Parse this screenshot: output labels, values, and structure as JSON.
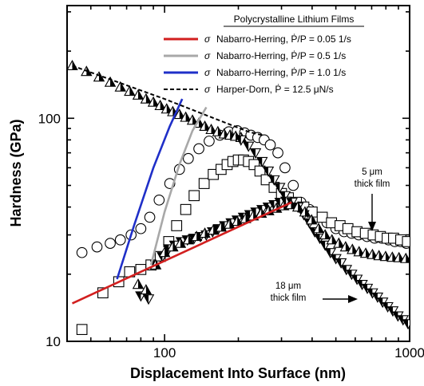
{
  "chart_data": {
    "type": "scatter",
    "title": "",
    "xlabel": "Displacement Into Surface (nm)",
    "ylabel": "Hardness (GPa)",
    "xscale": "log",
    "yscale": "log",
    "xlim": [
      40,
      1000
    ],
    "ylim": [
      10,
      320
    ],
    "x_tick_labels": [
      {
        "value": 100,
        "label": "100"
      },
      {
        "value": 1000,
        "label": "1000"
      }
    ],
    "y_tick_labels": [
      {
        "value": 10,
        "label": "10"
      },
      {
        "value": 100,
        "label": "100"
      }
    ],
    "legend": {
      "title": "Polycrystalline Lithium Films",
      "placement": "top-right",
      "entries": [
        {
          "symbol": "σ",
          "text": "Nabarro-Herring, Ṗ/P = 0.05 1/s",
          "color": "#d21f1f",
          "dash": false
        },
        {
          "symbol": "σ",
          "text": "Nabarro-Herring, Ṗ/P = 0.5 1/s",
          "color": "#a8a8a8",
          "dash": false
        },
        {
          "symbol": "σ",
          "text": "Nabarro-Herring, Ṗ/P = 1.0 1/s",
          "color": "#1f2fc8",
          "dash": false
        },
        {
          "symbol": "σ",
          "text": "Harper-Dorn, Ṗ = 12.5 μN/s",
          "color": "#000000",
          "dash": true
        }
      ]
    },
    "lines": [
      {
        "label": "Nabarro-Herring 0.05 1/s",
        "color": "#d21f1f",
        "dash": false,
        "x": [
          42,
          330
        ],
        "y": [
          14.8,
          42
        ]
      },
      {
        "label": "Nabarro-Herring 0.5 1/s",
        "color": "#a8a8a8",
        "dash": false,
        "x": [
          88,
          100,
          115,
          130,
          148
        ],
        "y": [
          22,
          38,
          62,
          88,
          112
        ]
      },
      {
        "label": "Nabarro-Herring 1.0 1/s",
        "color": "#1f2fc8",
        "dash": false,
        "x": [
          64,
          75,
          90,
          105,
          118
        ],
        "y": [
          19,
          33,
          60,
          92,
          122
        ]
      },
      {
        "label": "Harper-Dorn 12.5 μN/s",
        "color": "#000000",
        "dash": true,
        "x": [
          42,
          100,
          220,
          250
        ],
        "y": [
          172,
          122,
          87,
          84
        ]
      }
    ],
    "series": [
      {
        "marker": "circle-open",
        "x": [
          46,
          53,
          60,
          66,
          73,
          80,
          87,
          95,
          105,
          115,
          125,
          138,
          152,
          168,
          183,
          198,
          212,
          225,
          240,
          255,
          270,
          290,
          310,
          335,
          360,
          390,
          420,
          460,
          500,
          540,
          580,
          620,
          670,
          720,
          770,
          820,
          870,
          920,
          970
        ],
        "y": [
          25,
          26.5,
          27.5,
          28.5,
          30,
          32,
          36,
          43,
          51,
          59,
          66,
          73,
          79,
          84,
          87,
          88,
          86,
          84,
          82,
          80,
          76,
          70,
          60,
          50,
          42,
          39,
          36,
          34,
          32,
          31,
          30.5,
          30,
          29.5,
          29,
          29,
          28.5,
          28,
          28,
          27.5
        ]
      },
      {
        "marker": "square-open",
        "x": [
          46,
          56,
          65,
          72,
          80,
          88,
          96,
          104,
          112,
          122,
          132,
          145,
          158,
          170,
          180,
          190,
          200,
          210,
          220,
          232,
          245,
          260,
          280,
          300,
          320,
          345,
          370,
          400,
          440,
          480,
          520,
          560,
          610,
          660,
          710,
          760,
          810,
          860,
          920,
          980
        ],
        "y": [
          11.3,
          16.5,
          18.5,
          20.5,
          21,
          22,
          24,
          28,
          33,
          39,
          45,
          51,
          56,
          59,
          62,
          64,
          65,
          65,
          64,
          62,
          58,
          53,
          49,
          46,
          44,
          42,
          40,
          38,
          36,
          34,
          33,
          32,
          31,
          30.5,
          30,
          29.5,
          29,
          29,
          28.5,
          28
        ]
      },
      {
        "marker": "triangle-up-half",
        "x": [
          42,
          48,
          54,
          60,
          66,
          72,
          78,
          84,
          90,
          96,
          102,
          108,
          115,
          122,
          130,
          138,
          146,
          155,
          165,
          175,
          185,
          195,
          205
        ],
        "y": [
          172,
          162,
          153,
          145,
          138,
          132,
          127,
          122,
          118,
          114,
          110,
          107,
          104,
          101,
          98,
          95,
          92,
          89,
          87,
          85,
          84,
          83,
          82
        ]
      },
      {
        "marker": "triangle-down-half",
        "x": [
          205,
          220,
          235,
          250,
          265,
          280,
          295,
          310
        ],
        "y": [
          80,
          75,
          70,
          64,
          58,
          53,
          49,
          45
        ]
      },
      {
        "marker": "triangle-down-half",
        "x": [
          80,
          86,
          92,
          98,
          104,
          110,
          117,
          124,
          132,
          140,
          148,
          157,
          166,
          176,
          187,
          198,
          210,
          223,
          236,
          250,
          265,
          280,
          296,
          313,
          331,
          350,
          370,
          390,
          410,
          430,
          452,
          475,
          500,
          525,
          552,
          580,
          610,
          640,
          672,
          705,
          740,
          776,
          814,
          854,
          896,
          940,
          985
        ],
        "y": [
          16,
          15.5,
          22,
          24,
          26,
          27,
          28,
          28.5,
          29,
          29.5,
          30,
          31,
          32,
          33,
          34,
          35,
          36,
          37,
          38,
          39,
          40,
          41,
          42,
          42.5,
          42,
          40,
          37,
          34,
          31,
          29,
          27,
          25,
          23.5,
          22.5,
          21,
          20,
          19,
          18,
          17.3,
          16.5,
          15.8,
          15,
          14.3,
          13.7,
          13,
          12.5,
          12
        ]
      },
      {
        "marker": "triangle-up-half",
        "x": [
          78,
          84,
          92,
          100,
          108,
          116,
          125,
          135,
          146,
          158,
          170,
          184,
          198,
          214,
          230,
          248,
          266,
          286,
          306,
          328,
          350,
          374,
          398,
          425,
          452,
          482,
          514,
          548,
          584,
          622,
          662,
          705,
          750,
          798,
          850,
          905,
          965
        ],
        "y": [
          18,
          17,
          22,
          25,
          26.5,
          27.5,
          28.5,
          29.5,
          30.5,
          31.5,
          32.5,
          33.5,
          34.5,
          35.5,
          36.5,
          37.5,
          38.5,
          39.5,
          40.5,
          41,
          40,
          38,
          35,
          32,
          30,
          28.5,
          27.5,
          26.5,
          25.8,
          25.2,
          24.8,
          24.5,
          24.2,
          24,
          23.8,
          23.7,
          23.5
        ]
      }
    ],
    "annotations": [
      {
        "lines": [
          "5 μm",
          "thick film"
        ],
        "x": 800,
        "y": 52
      },
      {
        "lines": [
          "18 μm",
          "thick film"
        ],
        "x": 440,
        "y": 15
      }
    ]
  }
}
